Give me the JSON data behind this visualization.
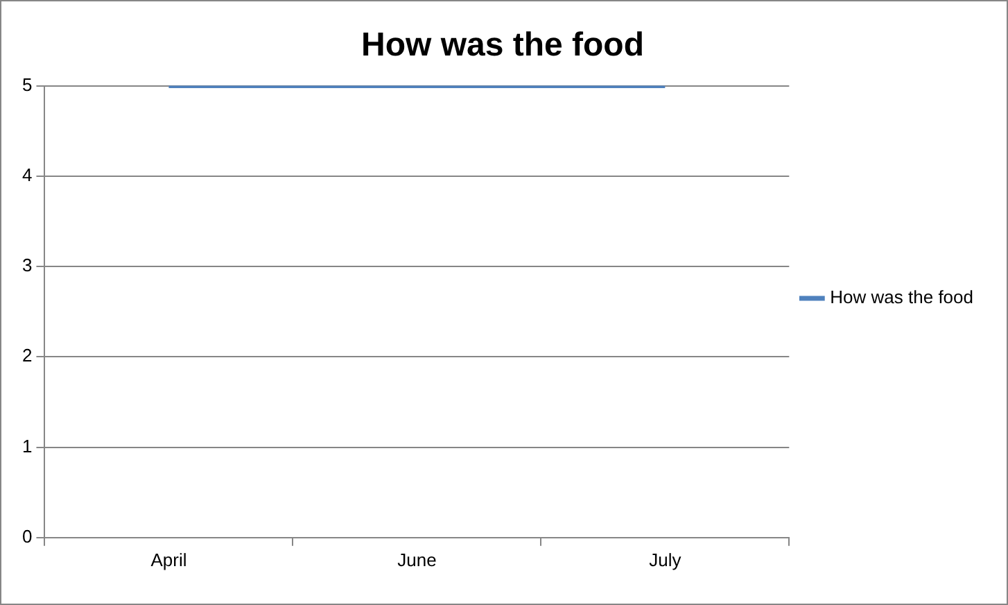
{
  "chart_data": {
    "type": "line",
    "title": "How was the food",
    "categories": [
      "April",
      "June",
      "July"
    ],
    "series": [
      {
        "name": "How was the food",
        "color": "#4f81bd",
        "values": [
          5,
          5,
          5
        ]
      }
    ],
    "ylim": [
      0,
      5
    ],
    "yticks": [
      0,
      1,
      2,
      3,
      4,
      5
    ],
    "grid": "y",
    "legend": "right",
    "marker": "none"
  }
}
